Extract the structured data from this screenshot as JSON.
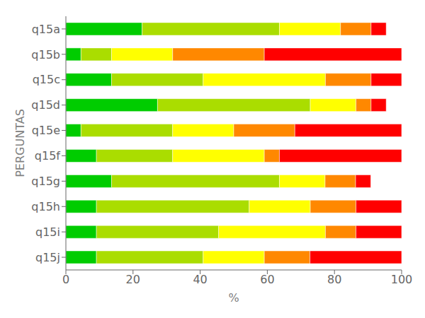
{
  "chart_data": {
    "type": "bar",
    "orientation": "horizontal",
    "stacked": true,
    "grid": false,
    "xlabel": "%",
    "ylabel": "PERGUNTAS",
    "categories": [
      "q15a",
      "q15b",
      "q15c",
      "q15d",
      "q15e",
      "q15f",
      "q15g",
      "q15h",
      "q15i",
      "q15j"
    ],
    "series": [
      {
        "color": "#00CC00",
        "values": [
          22.7,
          4.5,
          13.6,
          27.3,
          4.5,
          9.1,
          13.6,
          9.1,
          9.1,
          9.1
        ]
      },
      {
        "color": "#AADD00",
        "values": [
          40.9,
          9.1,
          27.3,
          45.5,
          27.3,
          22.7,
          50.0,
          45.5,
          36.4,
          31.8
        ]
      },
      {
        "color": "#FFFF00",
        "values": [
          18.2,
          18.2,
          36.4,
          13.6,
          18.2,
          27.3,
          13.6,
          18.2,
          31.8,
          18.2
        ]
      },
      {
        "color": "#FF8800",
        "values": [
          9.1,
          27.3,
          13.6,
          4.5,
          18.2,
          4.5,
          9.1,
          13.6,
          9.1,
          13.6
        ]
      },
      {
        "color": "#FF0000",
        "values": [
          4.5,
          40.9,
          9.1,
          4.5,
          31.8,
          36.4,
          4.5,
          13.6,
          13.6,
          27.3
        ]
      }
    ],
    "xlim": [
      0,
      100
    ],
    "xticks": [
      0,
      20,
      40,
      60,
      80,
      100
    ]
  }
}
